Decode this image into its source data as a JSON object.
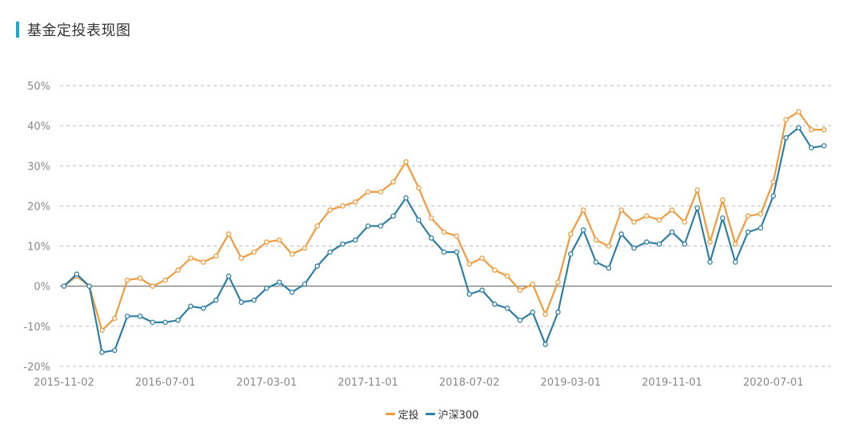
{
  "header": {
    "title": "基金定投表现图",
    "accent_color": "#1fa7c9"
  },
  "chart_data": {
    "type": "line",
    "title": "基金定投表现图",
    "xlabel": "",
    "ylabel": "",
    "ylim": [
      -20,
      50
    ],
    "y_ticks": [
      50,
      40,
      30,
      20,
      10,
      0,
      -10,
      -20
    ],
    "y_tick_labels": [
      "50%",
      "40%",
      "30%",
      "20%",
      "10%",
      "0%",
      "-10%",
      "-20%"
    ],
    "x_tick_labels": [
      "2015-11-02",
      "2016-07-01",
      "2017-03-01",
      "2017-11-01",
      "2018-07-02",
      "2019-03-01",
      "2019-11-01",
      "2020-07-01"
    ],
    "x_tick_indices": [
      0,
      8,
      16,
      24,
      32,
      40,
      48,
      56
    ],
    "grid": true,
    "legend": "bottom-center",
    "series": [
      {
        "name": "定投",
        "color": "#f39a3c",
        "values": [
          0,
          2.5,
          0,
          -11,
          -8,
          1.5,
          2,
          0,
          1.5,
          4,
          7,
          6,
          7.5,
          13,
          7,
          8.5,
          11,
          11.5,
          8,
          9.5,
          15,
          19,
          20,
          21,
          23.5,
          23.5,
          26,
          31,
          24.5,
          17,
          13.5,
          12.5,
          5.5,
          7,
          4,
          2.5,
          -1,
          0.5,
          -7,
          1,
          13,
          19,
          11.5,
          10,
          19,
          16,
          17.5,
          16.5,
          19,
          16,
          24,
          11,
          21.5,
          10.5,
          17.5,
          18,
          26,
          41.5,
          43.5,
          39,
          39
        ]
      },
      {
        "name": "沪深300",
        "color": "#2e7fa6",
        "values": [
          0,
          3,
          0,
          -16.5,
          -16,
          -7.5,
          -7.5,
          -9,
          -9,
          -8.5,
          -5,
          -5.5,
          -3.5,
          2.5,
          -4,
          -3.5,
          -0.5,
          1,
          -1.5,
          0.5,
          5,
          8.5,
          10.5,
          11.5,
          15,
          15,
          17.5,
          22,
          16.5,
          12,
          8.5,
          8.5,
          -2,
          -1,
          -4.5,
          -5.5,
          -8.5,
          -6.5,
          -14.5,
          -6.5,
          8,
          14,
          6,
          4.5,
          13,
          9.5,
          11,
          10.5,
          13.5,
          10.5,
          19.5,
          6,
          17,
          6,
          13.5,
          14.5,
          22.5,
          37,
          39.5,
          34.5,
          35
        ]
      }
    ]
  }
}
